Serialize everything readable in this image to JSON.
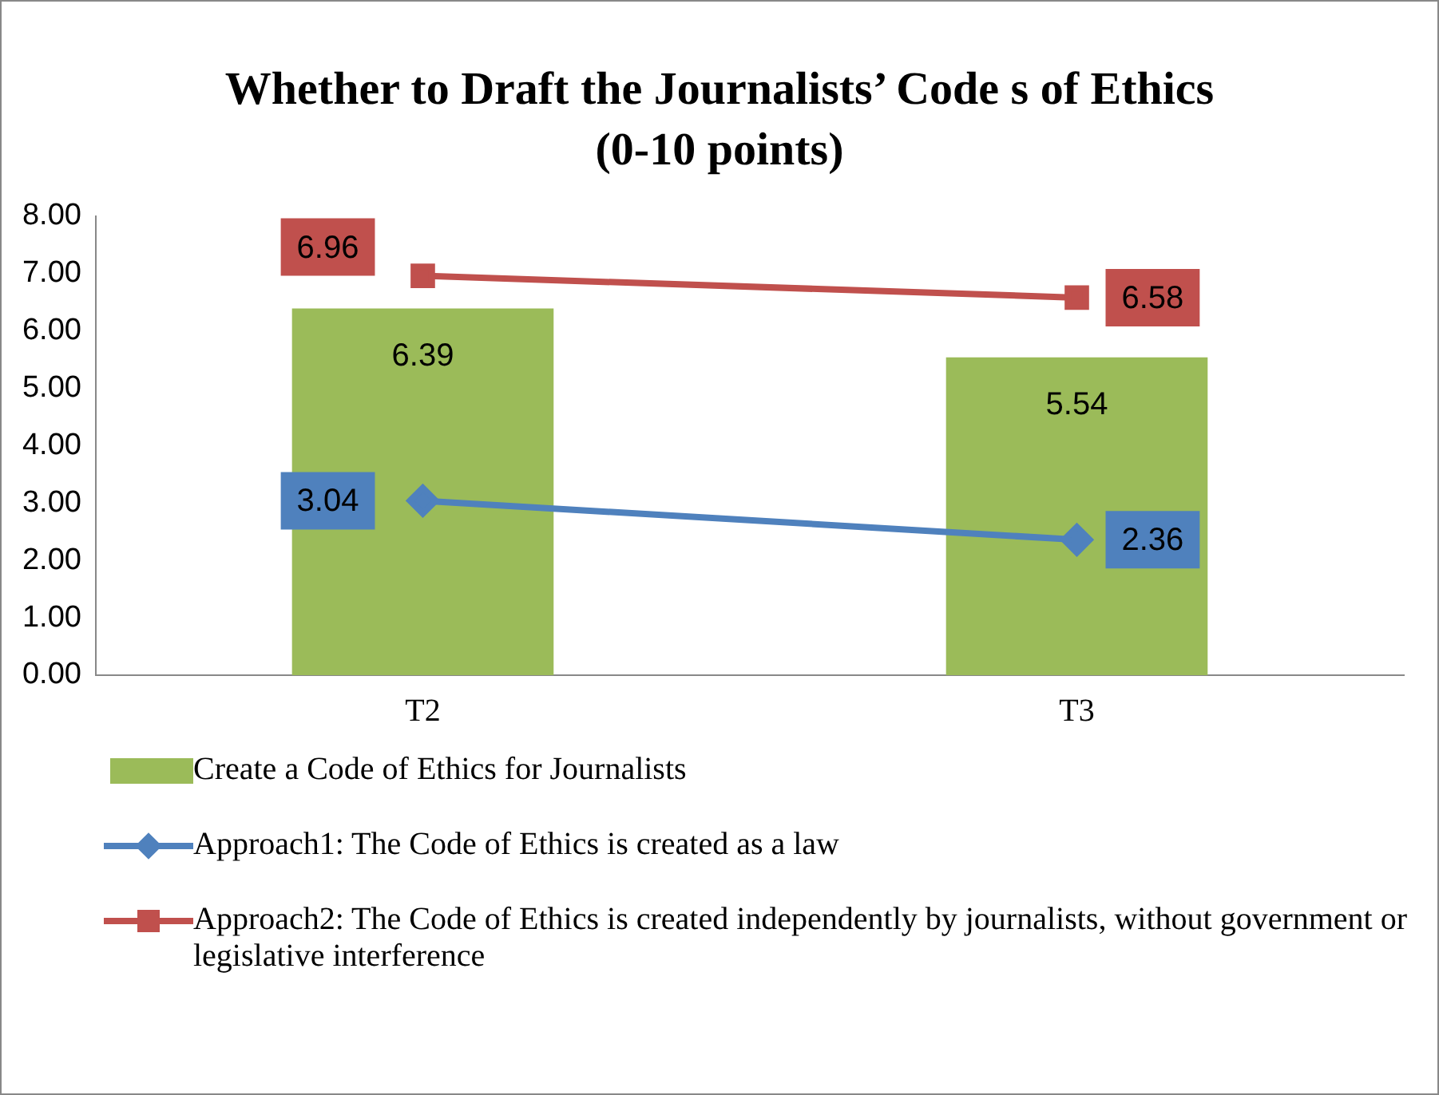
{
  "chart_data": {
    "type": "bar",
    "title": "Whether to Draft the Journalists’ Code s of  Ethics",
    "subtitle": "(0-10 points)",
    "categories": [
      "T2",
      "T3"
    ],
    "series": [
      {
        "name": "Create a Code of Ethics for Journalists",
        "color": "#9bbb59",
        "values": [
          6.39,
          5.54
        ]
      },
      {
        "name": "Approach1: The Code of Ethics is created as a law",
        "type": "line",
        "color": "#4f81bd",
        "marker": "diamond",
        "values": [
          3.04,
          2.36
        ]
      },
      {
        "name": "Approach2: The Code of Ethics is created independently by journalists, without government or legislative interference",
        "type": "line",
        "color": "#c0504d",
        "marker": "square",
        "values": [
          6.96,
          6.58
        ]
      }
    ],
    "ylim": [
      0,
      8
    ],
    "yticks": [
      {
        "value": 0,
        "label": "0.00"
      },
      {
        "value": 1,
        "label": "1.00"
      },
      {
        "value": 2,
        "label": "2.00"
      },
      {
        "value": 3,
        "label": "3.00"
      },
      {
        "value": 4,
        "label": "4.00"
      },
      {
        "value": 5,
        "label": "5.00"
      },
      {
        "value": 6,
        "label": "6.00"
      },
      {
        "value": 7,
        "label": "7.00"
      },
      {
        "value": 8,
        "label": "8.00"
      }
    ],
    "grid": false,
    "legend": "bottom",
    "data_labels": true
  }
}
